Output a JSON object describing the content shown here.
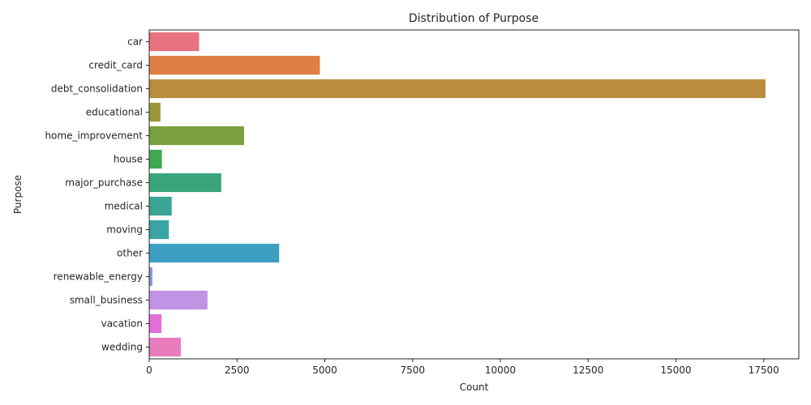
{
  "chart_data": {
    "type": "bar",
    "orientation": "horizontal",
    "title": "Distribution of Purpose",
    "xlabel": "Count",
    "ylabel": "Purpose",
    "xlim": [
      0,
      18500
    ],
    "xticks": [
      0,
      2500,
      5000,
      7500,
      10000,
      12500,
      15000,
      17500
    ],
    "grid": false,
    "categories": [
      "car",
      "credit_card",
      "debt_consolidation",
      "educational",
      "home_improvement",
      "house",
      "major_purchase",
      "medical",
      "moving",
      "other",
      "renewable_energy",
      "small_business",
      "vacation",
      "wedding"
    ],
    "values": [
      1420,
      4860,
      17550,
      320,
      2700,
      360,
      2050,
      640,
      560,
      3700,
      90,
      1660,
      350,
      900
    ],
    "colors": [
      "#e8727f",
      "#de7f45",
      "#b98c3e",
      "#9e963a",
      "#7ba03e",
      "#3fa851",
      "#3aa57c",
      "#3aa495",
      "#3aa3a5",
      "#3d9fc1",
      "#8a95db",
      "#c093e5",
      "#e46ed7",
      "#e87cbd"
    ]
  }
}
